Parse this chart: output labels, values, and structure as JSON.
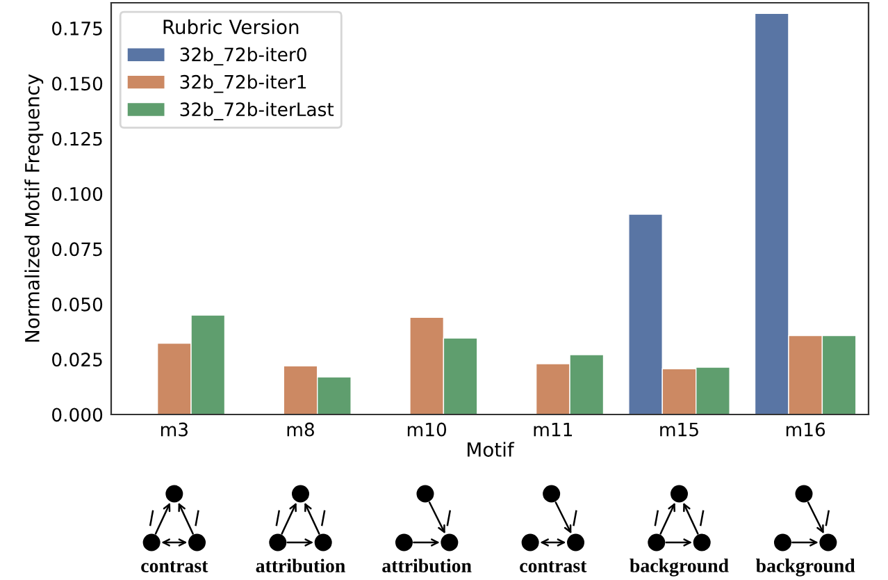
{
  "chart_data": {
    "type": "bar",
    "xlabel": "Motif",
    "ylabel": "Normalized Motif Frequency",
    "legend_title": "Rubric Version",
    "categories": [
      "m3",
      "m8",
      "m10",
      "m11",
      "m15",
      "m16"
    ],
    "series": [
      {
        "name": "32b_72b-iter0",
        "color": "#5975a4",
        "values": [
          null,
          null,
          null,
          null,
          0.0907,
          0.1817
        ]
      },
      {
        "name": "32b_72b-iter1",
        "color": "#cc8963",
        "values": [
          0.0323,
          0.022,
          0.044,
          0.023,
          0.0207,
          0.0357
        ]
      },
      {
        "name": "32b_72b-iterLast",
        "color": "#5f9e6e",
        "values": [
          0.045,
          0.017,
          0.0346,
          0.0271,
          0.0214,
          0.0357
        ]
      }
    ],
    "ylim": [
      0,
      0.1865
    ],
    "yticks": [
      {
        "value": 0,
        "label": "0.000"
      },
      {
        "value": 0.025,
        "label": "0.025"
      },
      {
        "value": 0.05,
        "label": "0.050"
      },
      {
        "value": 0.075,
        "label": "0.075"
      },
      {
        "value": 0.1,
        "label": "0.100"
      },
      {
        "value": 0.125,
        "label": "0.125"
      },
      {
        "value": 0.15,
        "label": "0.150"
      },
      {
        "value": 0.175,
        "label": "0.175"
      }
    ],
    "grid": false,
    "legend": "top left",
    "annotations": [
      "contrast",
      "attribution",
      "attribution",
      "contrast",
      "background",
      "background"
    ]
  }
}
